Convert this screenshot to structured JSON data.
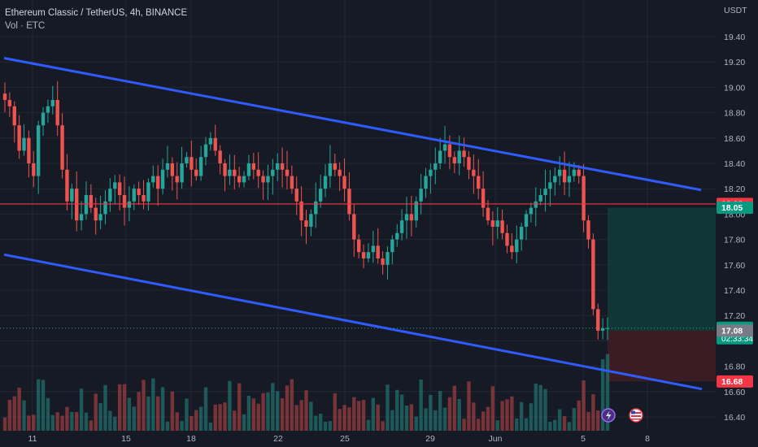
{
  "header": {
    "title": "Ethereum Classic / TetherUS, 4h, BINANCE",
    "indicator": "Vol · ETC"
  },
  "colors": {
    "background": "#161a25",
    "up": "#26a69a",
    "down": "#ef5350",
    "channel": "#2f5bff",
    "resistance": "#f23645",
    "target_zone": "#0f3a38",
    "stop_zone": "#3d1d25"
  },
  "icons": [
    "lightning-icon",
    "us-flag-icon"
  ],
  "chart_data": {
    "type": "candlestick",
    "y_axis_unit": "USDT",
    "ylim": [
      16.3,
      19.6
    ],
    "y_ticks": [
      16.4,
      16.6,
      16.8,
      17.0,
      17.2,
      17.4,
      17.6,
      17.8,
      18.0,
      18.2,
      18.4,
      18.6,
      18.8,
      19.0,
      19.2,
      19.4
    ],
    "x_ticks": [
      "11",
      "15",
      "18",
      "22",
      "25",
      "29",
      "Jun",
      "5",
      "8"
    ],
    "grid": true,
    "channel_upper": {
      "start": 19.23,
      "end": 18.19
    },
    "channel_lower": {
      "start": 17.68,
      "end": 16.62
    },
    "horizontal_level": 18.08,
    "price_badges": [
      {
        "label": "USDT-18.08",
        "value": 18.08,
        "text": "18.08",
        "color": "#f23645"
      },
      {
        "label": "18.05",
        "value": 18.05,
        "text": "18.05",
        "color": "#089981"
      },
      {
        "label": "17.10",
        "value": 17.1,
        "text": "17.10",
        "sub": "02:33:34",
        "color": "#089981"
      },
      {
        "label": "17.08",
        "value": 17.08,
        "text": "17.08",
        "color": "#787b86"
      },
      {
        "label": "16.68",
        "value": 16.68,
        "text": "16.68",
        "color": "#f23645"
      }
    ],
    "position": {
      "entry": 17.08,
      "target": 18.05,
      "stop": 16.68
    },
    "closes": [
      18.9,
      18.85,
      18.7,
      18.5,
      18.6,
      18.4,
      18.3,
      18.7,
      18.8,
      18.85,
      18.9,
      18.7,
      18.35,
      18.1,
      18.2,
      17.95,
      18.0,
      18.15,
      18.05,
      17.95,
      18.0,
      18.1,
      18.2,
      18.25,
      18.15,
      18.05,
      18.1,
      18.2,
      18.15,
      18.1,
      18.25,
      18.3,
      18.2,
      18.35,
      18.4,
      18.3,
      18.25,
      18.4,
      18.45,
      18.35,
      18.3,
      18.45,
      18.55,
      18.6,
      18.5,
      18.4,
      18.3,
      18.35,
      18.3,
      18.25,
      18.3,
      18.4,
      18.35,
      18.3,
      18.25,
      18.3,
      18.35,
      18.4,
      18.35,
      18.3,
      18.2,
      18.1,
      17.95,
      17.9,
      18.0,
      18.1,
      18.2,
      18.3,
      18.4,
      18.35,
      18.3,
      18.2,
      18.0,
      17.8,
      17.7,
      17.65,
      17.7,
      17.75,
      17.65,
      17.6,
      17.7,
      17.8,
      17.85,
      17.95,
      18.0,
      17.95,
      18.1,
      18.2,
      18.3,
      18.35,
      18.4,
      18.5,
      18.55,
      18.45,
      18.4,
      18.5,
      18.45,
      18.35,
      18.3,
      18.2,
      18.05,
      17.95,
      17.9,
      17.95,
      17.85,
      17.75,
      17.7,
      17.8,
      17.9,
      18.0,
      18.05,
      18.1,
      18.15,
      18.2,
      18.25,
      18.3,
      18.35,
      18.25,
      18.3,
      18.35,
      18.3,
      17.95,
      17.8,
      17.25,
      17.08,
      17.1,
      17.1
    ]
  }
}
